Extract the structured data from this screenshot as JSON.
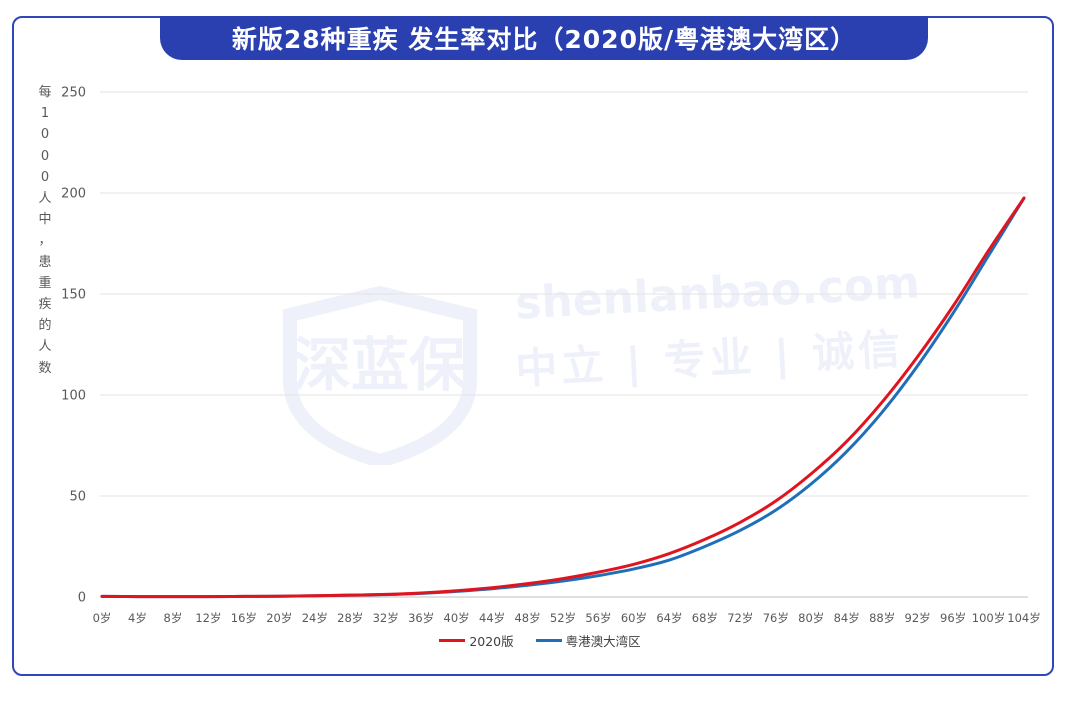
{
  "title": "新版28种重疾 发生率对比（2020版/粤港澳大湾区）",
  "colors": {
    "frame": "#2f47b8",
    "title_bg": "#2a3fb0",
    "series_2020": "#e0141e",
    "series_gba": "#1f6fb8"
  },
  "watermark": {
    "site": "shenlanbao.com",
    "motto": "中立 | 专业 | 诚信",
    "logo_text": "深蓝保"
  },
  "chart_data": {
    "type": "line",
    "ylabel": "每1000人中，患重疾的人数",
    "ylim": [
      0,
      250
    ],
    "yticks": [
      0,
      50,
      100,
      150,
      200,
      250
    ],
    "grid": true,
    "legend_position": "bottom",
    "categories": [
      "0岁",
      "4岁",
      "8岁",
      "12岁",
      "16岁",
      "20岁",
      "24岁",
      "28岁",
      "32岁",
      "36岁",
      "40岁",
      "44岁",
      "48岁",
      "52岁",
      "56岁",
      "60岁",
      "64岁",
      "68岁",
      "72岁",
      "76岁",
      "80岁",
      "84岁",
      "88岁",
      "92岁",
      "96岁",
      "100岁",
      "104岁"
    ],
    "series": [
      {
        "name": "2020版",
        "color": "#e0141e",
        "values": [
          0.3,
          0.2,
          0.2,
          0.2,
          0.3,
          0.4,
          0.6,
          0.9,
          1.3,
          2.0,
          3.1,
          4.6,
          6.6,
          9.1,
          12.3,
          16.2,
          21.5,
          28.5,
          37.0,
          47.5,
          61.0,
          77.0,
          96.5,
          119.0,
          144.0,
          171.5,
          197.5
        ]
      },
      {
        "name": "粤港澳大湾区",
        "color": "#1f6fb8",
        "values": [
          0.3,
          0.2,
          0.2,
          0.2,
          0.3,
          0.4,
          0.6,
          0.9,
          1.2,
          1.8,
          2.8,
          4.1,
          5.8,
          7.9,
          10.6,
          13.9,
          18.3,
          25.0,
          33.0,
          43.0,
          56.0,
          72.0,
          91.5,
          114.5,
          140.5,
          169.0,
          197.5
        ]
      }
    ]
  }
}
